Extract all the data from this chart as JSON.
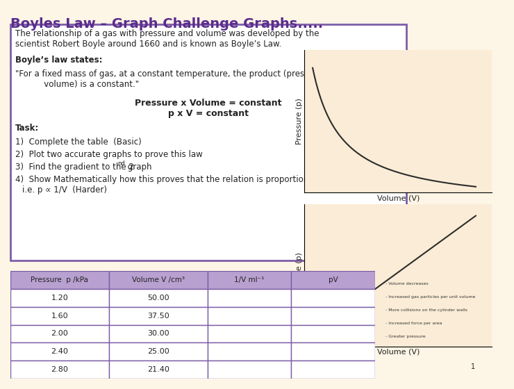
{
  "title": "Boyles Law – Graph Challenge Graphs.....",
  "title_color": "#5b2c8d",
  "title_fontsize": 14,
  "bg_color": "#fdf5e6",
  "text_box_color": "#7b5ea7",
  "text_box_bg": "#ffffff",
  "main_text": "The relationship of a gas with pressure and volume was developed by the\nscientist Robert Boyle around 1660 and is known as Boyle’s Law.",
  "bold_text": "Boyle’s law states:",
  "quote_text": "\"For a fixed mass of gas, at a constant temperature, the product (pressure x\n           volume) is a constant.\"",
  "formula_line1": "Pressure x Volume = constant",
  "formula_line2": "p x V = constant",
  "task_header": "Task:",
  "task_items": [
    "Complete the table  (Basic)",
    "Plot two accurate graphs to prove this law",
    "Find the gradient to the 2nd graph",
    "Show Mathematically how this proves that the relation is proportional\n      i.e. p ∝ 1/V  (Harder)"
  ],
  "table_header": [
    "Pressure  p /kPa",
    "Volume V /cm³",
    "1/V ml⁻¹",
    "pV"
  ],
  "table_data": [
    [
      "1.20",
      "50.00",
      "",
      ""
    ],
    [
      "1.60",
      "37.50",
      "",
      ""
    ],
    [
      "2.00",
      "30.00",
      "",
      ""
    ],
    [
      "2.40",
      "25.00",
      "",
      ""
    ],
    [
      "2.80",
      "21.40",
      "",
      ""
    ]
  ],
  "table_header_bg": "#b8a0d0",
  "table_row_bg": "#ffffff",
  "table_border_color": "#7b5ea7",
  "graph_bg": "#faecd6",
  "graph_line_color": "#2c2c2c",
  "graph_axis_color": "#000000",
  "graph1_xlabel": "Volume (V)",
  "graph1_ylabel": "Pressure (p)",
  "graph2_xlabel": "Volume (V)",
  "graph2_ylabel": "Pressure (p)",
  "img_texts": [
    "- Volume decreases",
    "- Increased gas particles per unit volume",
    "- More collisions on the cylinder walls",
    "- Increased force per area",
    "- Greater pressure"
  ]
}
